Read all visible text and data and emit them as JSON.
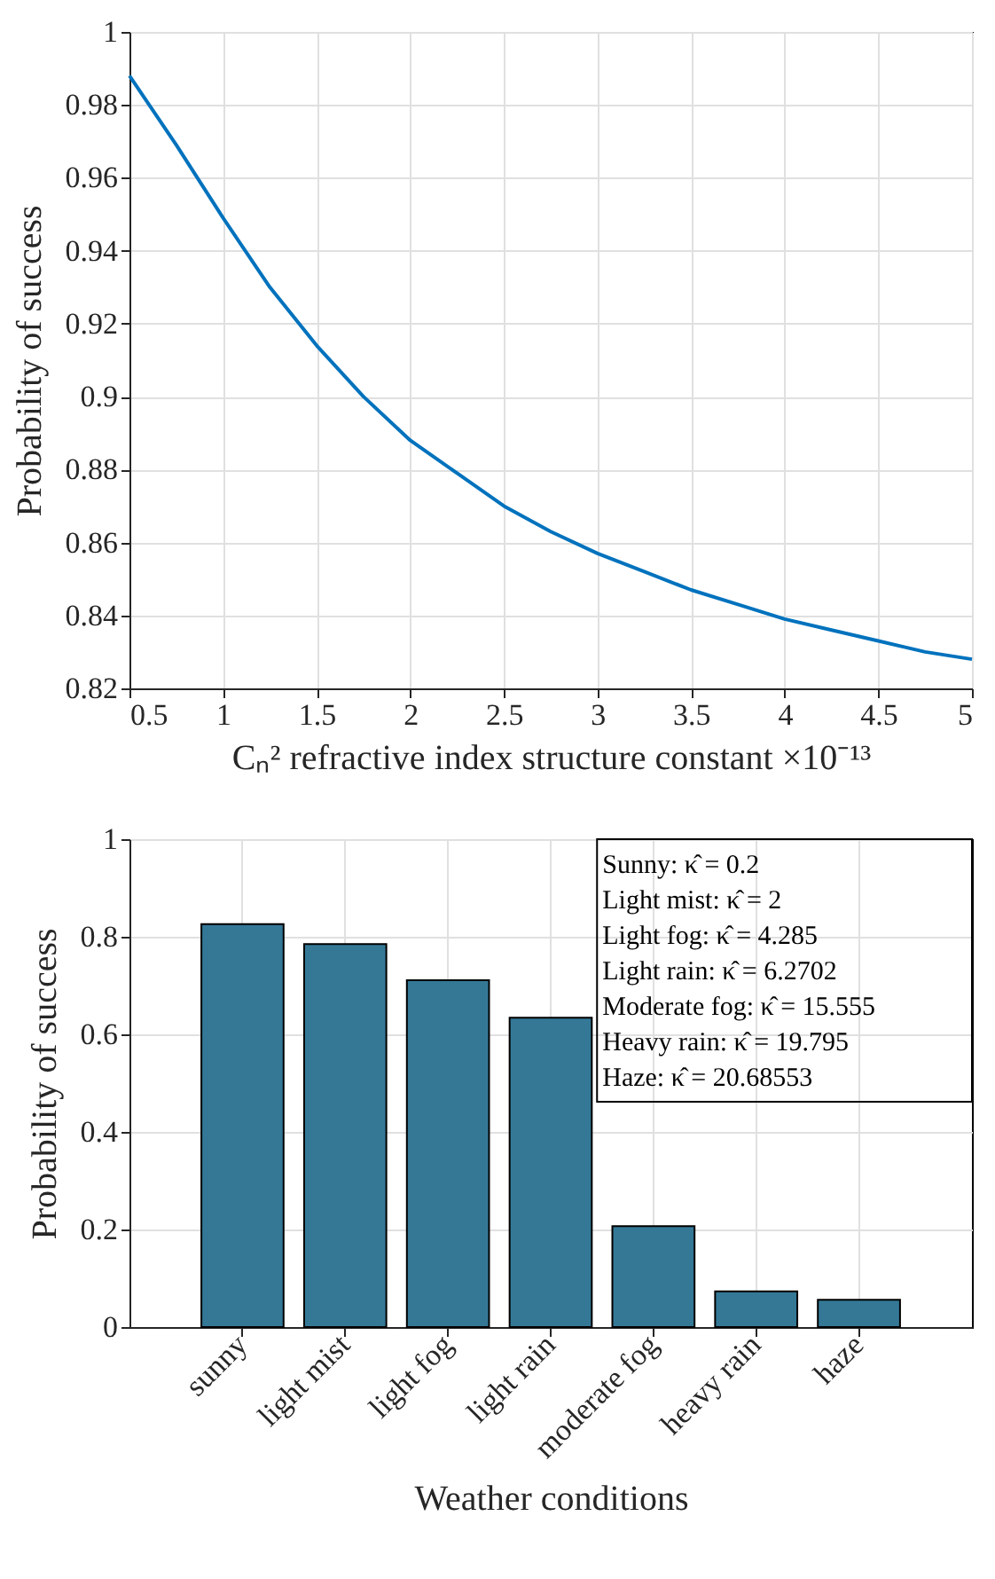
{
  "chart_data": [
    {
      "type": "line",
      "xlabel": "Cₙ² refractive index structure constant ×10⁻¹³",
      "ylabel": "Probability of success",
      "x": [
        0.5,
        0.75,
        1,
        1.25,
        1.5,
        1.75,
        2,
        2.25,
        2.5,
        2.75,
        3,
        3.25,
        3.5,
        3.75,
        4,
        4.25,
        4.5,
        4.75,
        5
      ],
      "series": [
        {
          "color": "#0072bd",
          "values": [
            0.988,
            0.969,
            0.949,
            0.93,
            0.914,
            0.9,
            0.888,
            0.879,
            0.87,
            0.863,
            0.857,
            0.852,
            0.847,
            0.843,
            0.839,
            0.836,
            0.833,
            0.83,
            0.828
          ]
        }
      ],
      "xlim": [
        0.5,
        5
      ],
      "xticks": [
        0.5,
        1,
        1.5,
        2,
        2.5,
        3,
        3.5,
        4,
        4.5,
        5
      ],
      "ylim": [
        0.82,
        1
      ],
      "yticks": [
        0.82,
        0.84,
        0.86,
        0.88,
        0.9,
        0.92,
        0.94,
        0.96,
        0.98,
        1
      ],
      "grid": true,
      "line_style": "solid",
      "marker": "none"
    },
    {
      "type": "bar",
      "xlabel": "Weather conditions",
      "ylabel": "Probability of success",
      "categories": [
        "sunny",
        "light mist",
        "light fog",
        "light rain",
        "moderate fog",
        "heavy rain",
        "haze"
      ],
      "values": [
        0.826,
        0.785,
        0.711,
        0.634,
        0.207,
        0.073,
        0.056
      ],
      "color": "#347896",
      "ylim": [
        0,
        1
      ],
      "yticks": [
        0,
        0.2,
        0.4,
        0.6,
        0.8,
        1
      ],
      "grid": true,
      "annotations": [
        "Sunny: κ̂ = 0.2",
        "Light mist: κ̂ = 2",
        "Light fog: κ̂ = 4.285",
        "Light rain: κ̂ = 6.2702",
        "Moderate fog: κ̂ = 15.555",
        "Heavy rain: κ̂ = 19.795",
        "Haze: κ̂ = 20.68553"
      ]
    }
  ]
}
